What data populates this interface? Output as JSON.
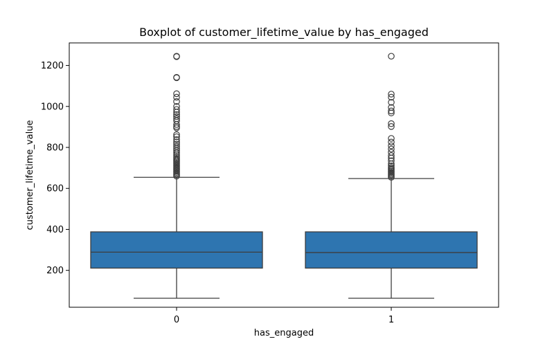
{
  "chart_data": {
    "type": "boxplot",
    "title": "Boxplot of customer_lifetime_value by has_engaged",
    "xlabel": "has_engaged",
    "ylabel": "customer_lifetime_value",
    "categories": [
      "0",
      "1"
    ],
    "ylim": [
      20,
      1310
    ],
    "yticks": [
      200,
      400,
      600,
      800,
      1000,
      1200
    ],
    "grid": false,
    "legend": "none",
    "colors": {
      "box_fill": "#2e75b0",
      "line": "#3d3d3d"
    },
    "boxes": [
      {
        "category": "0",
        "whisker_low": 64,
        "q1": 211,
        "median": 289,
        "q3": 388,
        "whisker_high": 654,
        "outliers": [
          660,
          666,
          672,
          678,
          684,
          690,
          696,
          702,
          708,
          714,
          720,
          726,
          732,
          738,
          744,
          752,
          760,
          768,
          776,
          786,
          796,
          806,
          816,
          826,
          838,
          852,
          862,
          895,
          902,
          912,
          930,
          940,
          950,
          960,
          972,
          985,
          1000,
          1024,
          1045,
          1062,
          1140,
          1142,
          1243,
          1245
        ]
      },
      {
        "category": "1",
        "whisker_low": 64,
        "q1": 211,
        "median": 287,
        "q3": 388,
        "whisker_high": 648,
        "outliers": [
          654,
          660,
          666,
          672,
          678,
          684,
          690,
          696,
          702,
          710,
          720,
          735,
          748,
          760,
          776,
          792,
          808,
          826,
          844,
          902,
          916,
          968,
          978,
          995,
          1020,
          1045,
          1060,
          1245
        ]
      }
    ]
  }
}
